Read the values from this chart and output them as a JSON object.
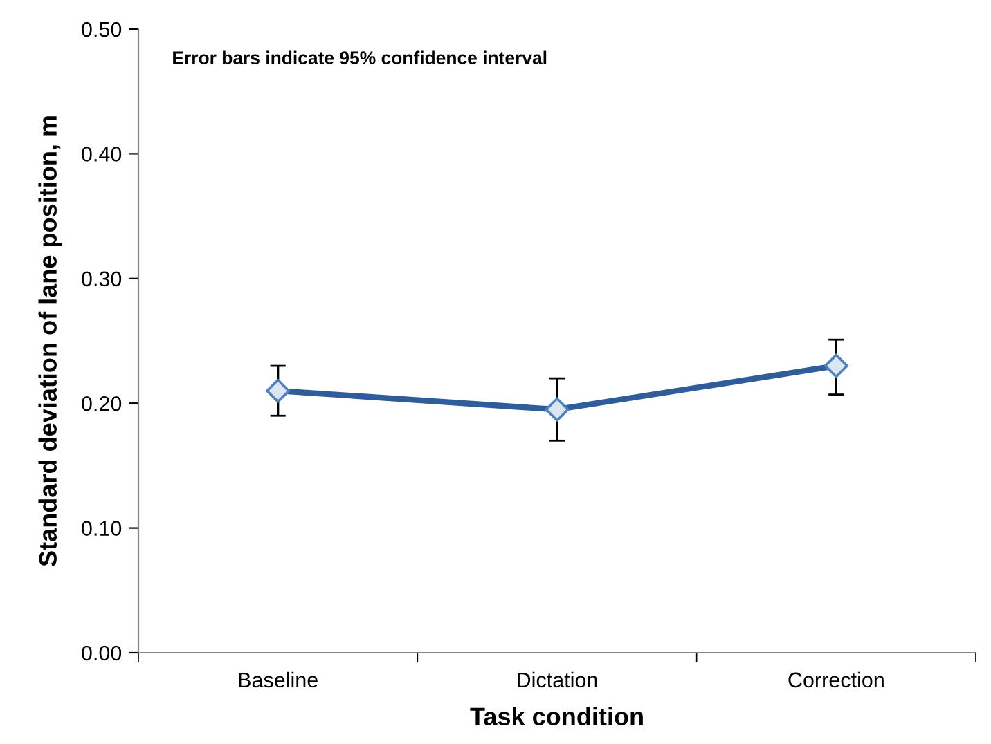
{
  "chart_data": {
    "type": "line",
    "xlabel": "Task condition",
    "ylabel": "Standard deviation of lane position, m",
    "annotations": [
      "Error bars indicate 95% confidence interval"
    ],
    "categories": [
      "Baseline",
      "Dictation",
      "Correction"
    ],
    "series": [
      {
        "color": "#2e5d9a",
        "values": [
          0.21,
          0.195,
          0.23
        ],
        "errors": [
          [
            0.19,
            0.23
          ],
          [
            0.17,
            0.22
          ],
          [
            0.207,
            0.251
          ]
        ]
      }
    ],
    "ylim": [
      0,
      0.5
    ],
    "yticks": [
      {
        "value": 0,
        "label": "0.00"
      },
      {
        "value": 0.1,
        "label": "0.10"
      },
      {
        "value": 0.2,
        "label": "0.20"
      },
      {
        "value": 0.3,
        "label": "0.30"
      },
      {
        "value": 0.4,
        "label": "0.40"
      },
      {
        "value": 0.5,
        "label": "0.50"
      }
    ],
    "grid": false,
    "marker": "diamond",
    "line_style": "solid"
  }
}
